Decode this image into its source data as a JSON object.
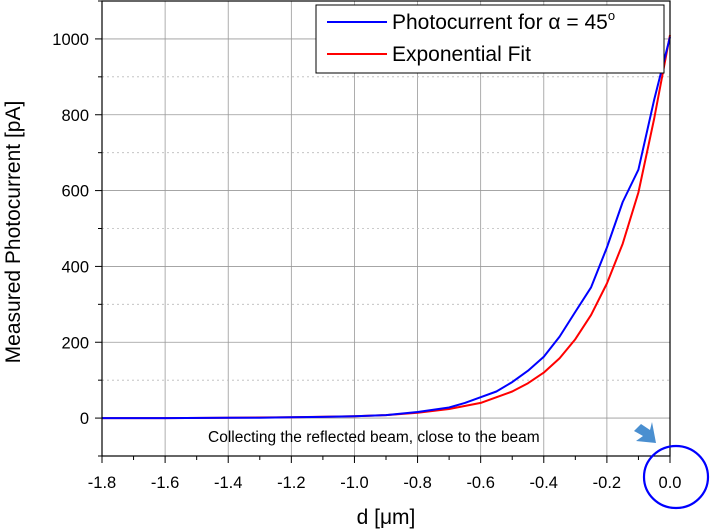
{
  "chart_data": {
    "type": "line",
    "title": "",
    "xlabel": "d [μm]",
    "ylabel": "Measured Photocurrent [pA]",
    "xlim": [
      -1.8,
      0.0
    ],
    "ylim": [
      -100,
      1100
    ],
    "xticks": [
      -1.8,
      -1.6,
      -1.4,
      -1.2,
      -1.0,
      -0.8,
      -0.6,
      -0.4,
      -0.2,
      0.0
    ],
    "yticks": [
      0,
      200,
      400,
      600,
      800,
      1000
    ],
    "xtick_labels": [
      "-1.8",
      "-1.6",
      "-1.4",
      "-1.2",
      "-1.0",
      "-0.8",
      "-0.6",
      "-0.4",
      "-0.2",
      "0.0"
    ],
    "ytick_labels": [
      "0",
      "200",
      "400",
      "600",
      "800",
      "1000"
    ],
    "grid": true,
    "legend_position": "top-right",
    "annotation": "Collecting the reflected beam, close to the beam",
    "series": [
      {
        "name": "Photocurrent for α = 45°",
        "name_main": "Photocurrent for ",
        "name_alpha": "α = 45",
        "name_sup": "o",
        "color": "#0000ff",
        "x": [
          -1.8,
          -1.6,
          -1.4,
          -1.3,
          -1.2,
          -1.1,
          -1.0,
          -0.9,
          -0.8,
          -0.7,
          -0.65,
          -0.6,
          -0.55,
          -0.5,
          -0.45,
          -0.4,
          -0.35,
          -0.3,
          -0.25,
          -0.2,
          -0.15,
          -0.1,
          -0.05,
          0.0
        ],
        "y": [
          0,
          0,
          1,
          1,
          2,
          3,
          5,
          8,
          16,
          28,
          40,
          55,
          70,
          95,
          125,
          162,
          215,
          280,
          345,
          450,
          570,
          655,
          840,
          1005
        ]
      },
      {
        "name": "Exponential Fit",
        "color": "#ff0000",
        "x": [
          -1.8,
          -1.6,
          -1.4,
          -1.2,
          -1.0,
          -0.9,
          -0.8,
          -0.7,
          -0.6,
          -0.5,
          -0.45,
          -0.4,
          -0.35,
          -0.3,
          -0.25,
          -0.2,
          -0.15,
          -0.1,
          -0.05,
          0.0
        ],
        "y": [
          0,
          0,
          1,
          2,
          5,
          8,
          14,
          24,
          40,
          70,
          92,
          120,
          158,
          208,
          272,
          355,
          460,
          595,
          790,
          1010
        ]
      }
    ]
  }
}
